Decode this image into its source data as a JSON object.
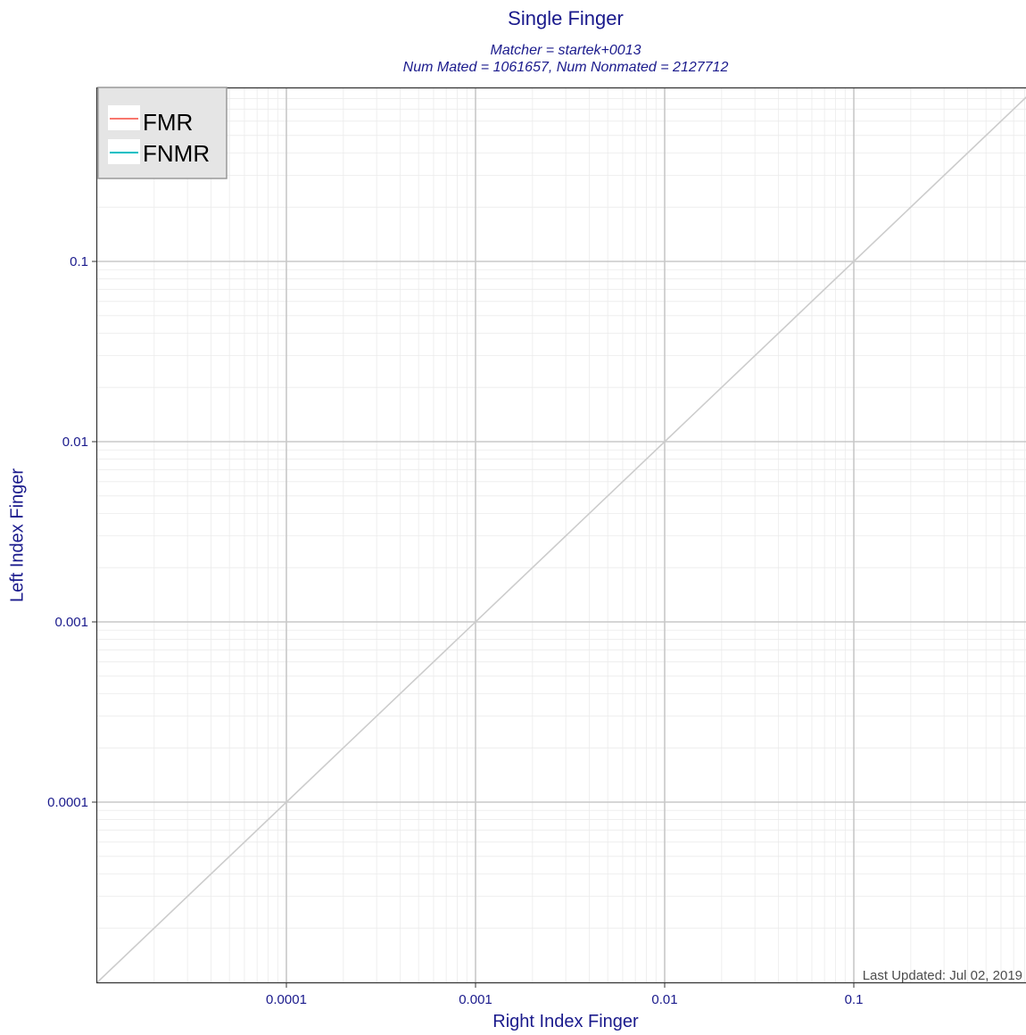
{
  "chart_data": {
    "type": "line",
    "title": "Single Finger",
    "subtitle_lines": [
      "Matcher = startek+0013",
      "Num Mated = 1061657, Num Nonmated = 2127712"
    ],
    "xlabel": "Right Index Finger",
    "ylabel": "Left Index Finger",
    "x_scale": "log",
    "y_scale": "log",
    "xlim": [
      1e-05,
      1
    ],
    "ylim": [
      1e-05,
      1
    ],
    "x_ticks": [
      {
        "value": 0.0001,
        "label": "0.0001"
      },
      {
        "value": 0.001,
        "label": "0.001"
      },
      {
        "value": 0.01,
        "label": "0.01"
      },
      {
        "value": 0.1,
        "label": "0.1"
      }
    ],
    "y_ticks": [
      {
        "value": 0.0001,
        "label": "0.0001"
      },
      {
        "value": 0.001,
        "label": "0.001"
      },
      {
        "value": 0.01,
        "label": "0.01"
      },
      {
        "value": 0.1,
        "label": "0.1"
      }
    ],
    "grid": true,
    "reference_line": {
      "x": [
        1e-05,
        1
      ],
      "y": [
        1e-05,
        1
      ],
      "color": "#cccccc"
    },
    "legend": {
      "placement": "top-left",
      "entries": [
        {
          "name": "FMR",
          "color": "#f8766d"
        },
        {
          "name": "FNMR",
          "color": "#00bfc4"
        }
      ]
    },
    "annotation": "Last Updated: Jul 02, 2019"
  }
}
